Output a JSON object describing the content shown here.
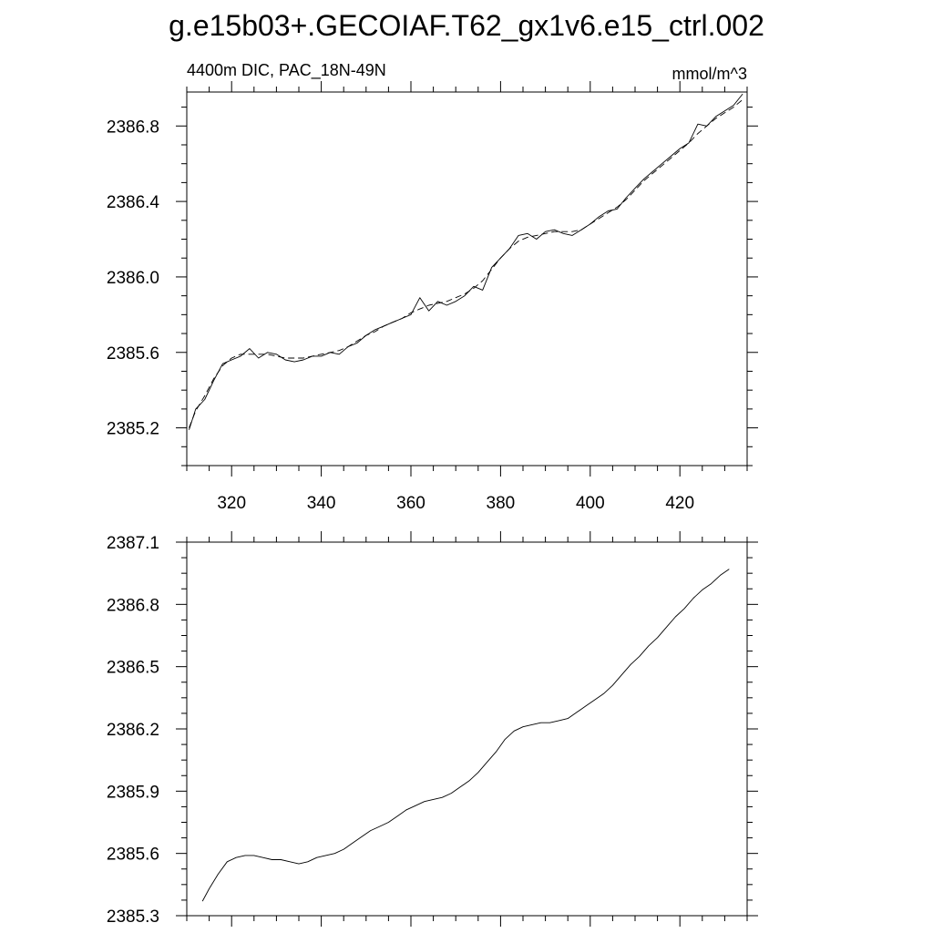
{
  "title": "g.e15b03+.GECOIAF.T62_gx1v6.e15_ctrl.002",
  "chart_data": [
    {
      "type": "line",
      "left_label": "4400m DIC, PAC_18N-49N",
      "right_label": "mmol/m^3",
      "xlim": [
        310,
        435
      ],
      "ylim": [
        2385.0,
        2386.98
      ],
      "xticks": [
        320,
        340,
        360,
        380,
        400,
        420
      ],
      "xtick_labels": [
        "320",
        "340",
        "360",
        "380",
        "400",
        "420"
      ],
      "yticks": [
        2385.2,
        2385.6,
        2386.0,
        2386.4,
        2386.8
      ],
      "ytick_labels": [
        "2385.2",
        "2385.6",
        "2386.0",
        "2386.4",
        "2386.8"
      ],
      "series": [
        {
          "style": "solid",
          "x": [
            310.5,
            312,
            314,
            316,
            318,
            320,
            322,
            324,
            326,
            328,
            330,
            332,
            334,
            336,
            338,
            340,
            342,
            344,
            346,
            348,
            350,
            352,
            354,
            356,
            358,
            360,
            362,
            364,
            366,
            368,
            370,
            372,
            374,
            376,
            378,
            380,
            382,
            384,
            386,
            388,
            390,
            392,
            394,
            396,
            398,
            400,
            402,
            404,
            406,
            408,
            410,
            412,
            414,
            416,
            418,
            420,
            422,
            424,
            426,
            428,
            430,
            432,
            434
          ],
          "y": [
            2385.19,
            2385.3,
            2385.35,
            2385.45,
            2385.54,
            2385.56,
            2385.58,
            2385.62,
            2385.57,
            2385.6,
            2385.59,
            2385.56,
            2385.55,
            2385.56,
            2385.58,
            2385.58,
            2385.6,
            2385.59,
            2385.63,
            2385.65,
            2385.69,
            2385.72,
            2385.74,
            2385.76,
            2385.78,
            2385.8,
            2385.89,
            2385.82,
            2385.87,
            2385.85,
            2385.87,
            2385.9,
            2385.95,
            2385.93,
            2386.05,
            2386.1,
            2386.15,
            2386.22,
            2386.23,
            2386.2,
            2386.24,
            2386.25,
            2386.23,
            2386.22,
            2386.25,
            2386.28,
            2386.32,
            2386.35,
            2386.36,
            2386.42,
            2386.47,
            2386.52,
            2386.56,
            2386.6,
            2386.64,
            2386.68,
            2386.71,
            2386.81,
            2386.8,
            2386.85,
            2386.88,
            2386.91,
            2386.97
          ]
        },
        {
          "style": "dashed",
          "x": [
            310.5,
            312,
            314,
            316,
            318,
            320,
            322,
            324,
            326,
            328,
            330,
            332,
            334,
            336,
            338,
            340,
            342,
            344,
            346,
            348,
            350,
            352,
            354,
            356,
            358,
            360,
            362,
            364,
            366,
            368,
            370,
            372,
            374,
            376,
            378,
            380,
            382,
            384,
            386,
            388,
            390,
            392,
            394,
            396,
            398,
            400,
            402,
            404,
            406,
            408,
            410,
            412,
            414,
            416,
            418,
            420,
            422,
            424,
            426,
            428,
            430,
            432,
            434
          ],
          "y": [
            2385.2,
            2385.29,
            2385.37,
            2385.46,
            2385.53,
            2385.57,
            2385.59,
            2385.59,
            2385.59,
            2385.59,
            2385.58,
            2385.57,
            2385.57,
            2385.57,
            2385.58,
            2385.59,
            2385.6,
            2385.61,
            2385.63,
            2385.66,
            2385.69,
            2385.71,
            2385.74,
            2385.76,
            2385.78,
            2385.81,
            2385.83,
            2385.85,
            2385.86,
            2385.87,
            2385.89,
            2385.91,
            2385.94,
            2385.98,
            2386.04,
            2386.1,
            2386.15,
            2386.19,
            2386.21,
            2386.22,
            2386.23,
            2386.24,
            2386.24,
            2386.24,
            2386.25,
            2386.28,
            2386.31,
            2386.34,
            2386.37,
            2386.41,
            2386.46,
            2386.51,
            2386.55,
            2386.59,
            2386.63,
            2386.67,
            2386.71,
            2386.76,
            2386.8,
            2386.84,
            2386.87,
            2386.9,
            2386.94
          ]
        }
      ]
    },
    {
      "type": "line",
      "xlim": [
        310,
        435
      ],
      "ylim": [
        2385.3,
        2387.1
      ],
      "xticks": [
        320,
        340,
        360,
        380,
        400,
        420
      ],
      "yticks": [
        2385.3,
        2385.6,
        2385.9,
        2386.2,
        2386.5,
        2386.8,
        2387.1
      ],
      "ytick_labels": [
        "2385.3",
        "2385.6",
        "2385.9",
        "2386.2",
        "2386.5",
        "2386.8",
        "2387.1"
      ],
      "series": [
        {
          "style": "solid",
          "x": [
            313.5,
            315,
            317,
            319,
            321,
            323,
            325,
            327,
            329,
            331,
            333,
            335,
            337,
            339,
            341,
            343,
            345,
            347,
            349,
            351,
            353,
            355,
            357,
            359,
            361,
            363,
            365,
            367,
            369,
            371,
            373,
            375,
            377,
            379,
            381,
            383,
            385,
            387,
            389,
            391,
            393,
            395,
            397,
            399,
            401,
            403,
            405,
            407,
            409,
            411,
            413,
            415,
            417,
            419,
            421,
            423,
            425,
            427,
            429,
            431
          ],
          "y": [
            2385.37,
            2385.43,
            2385.5,
            2385.56,
            2385.58,
            2385.59,
            2385.59,
            2385.58,
            2385.57,
            2385.57,
            2385.56,
            2385.55,
            2385.56,
            2385.58,
            2385.59,
            2385.6,
            2385.62,
            2385.65,
            2385.68,
            2385.71,
            2385.73,
            2385.75,
            2385.78,
            2385.81,
            2385.83,
            2385.85,
            2385.86,
            2385.87,
            2385.89,
            2385.92,
            2385.95,
            2385.99,
            2386.04,
            2386.09,
            2386.15,
            2386.19,
            2386.21,
            2386.22,
            2386.23,
            2386.23,
            2386.24,
            2386.25,
            2386.28,
            2386.31,
            2386.34,
            2386.37,
            2386.41,
            2386.46,
            2386.51,
            2386.55,
            2386.6,
            2386.64,
            2386.69,
            2386.74,
            2386.78,
            2386.83,
            2386.87,
            2386.9,
            2386.94,
            2386.97
          ]
        }
      ]
    }
  ]
}
